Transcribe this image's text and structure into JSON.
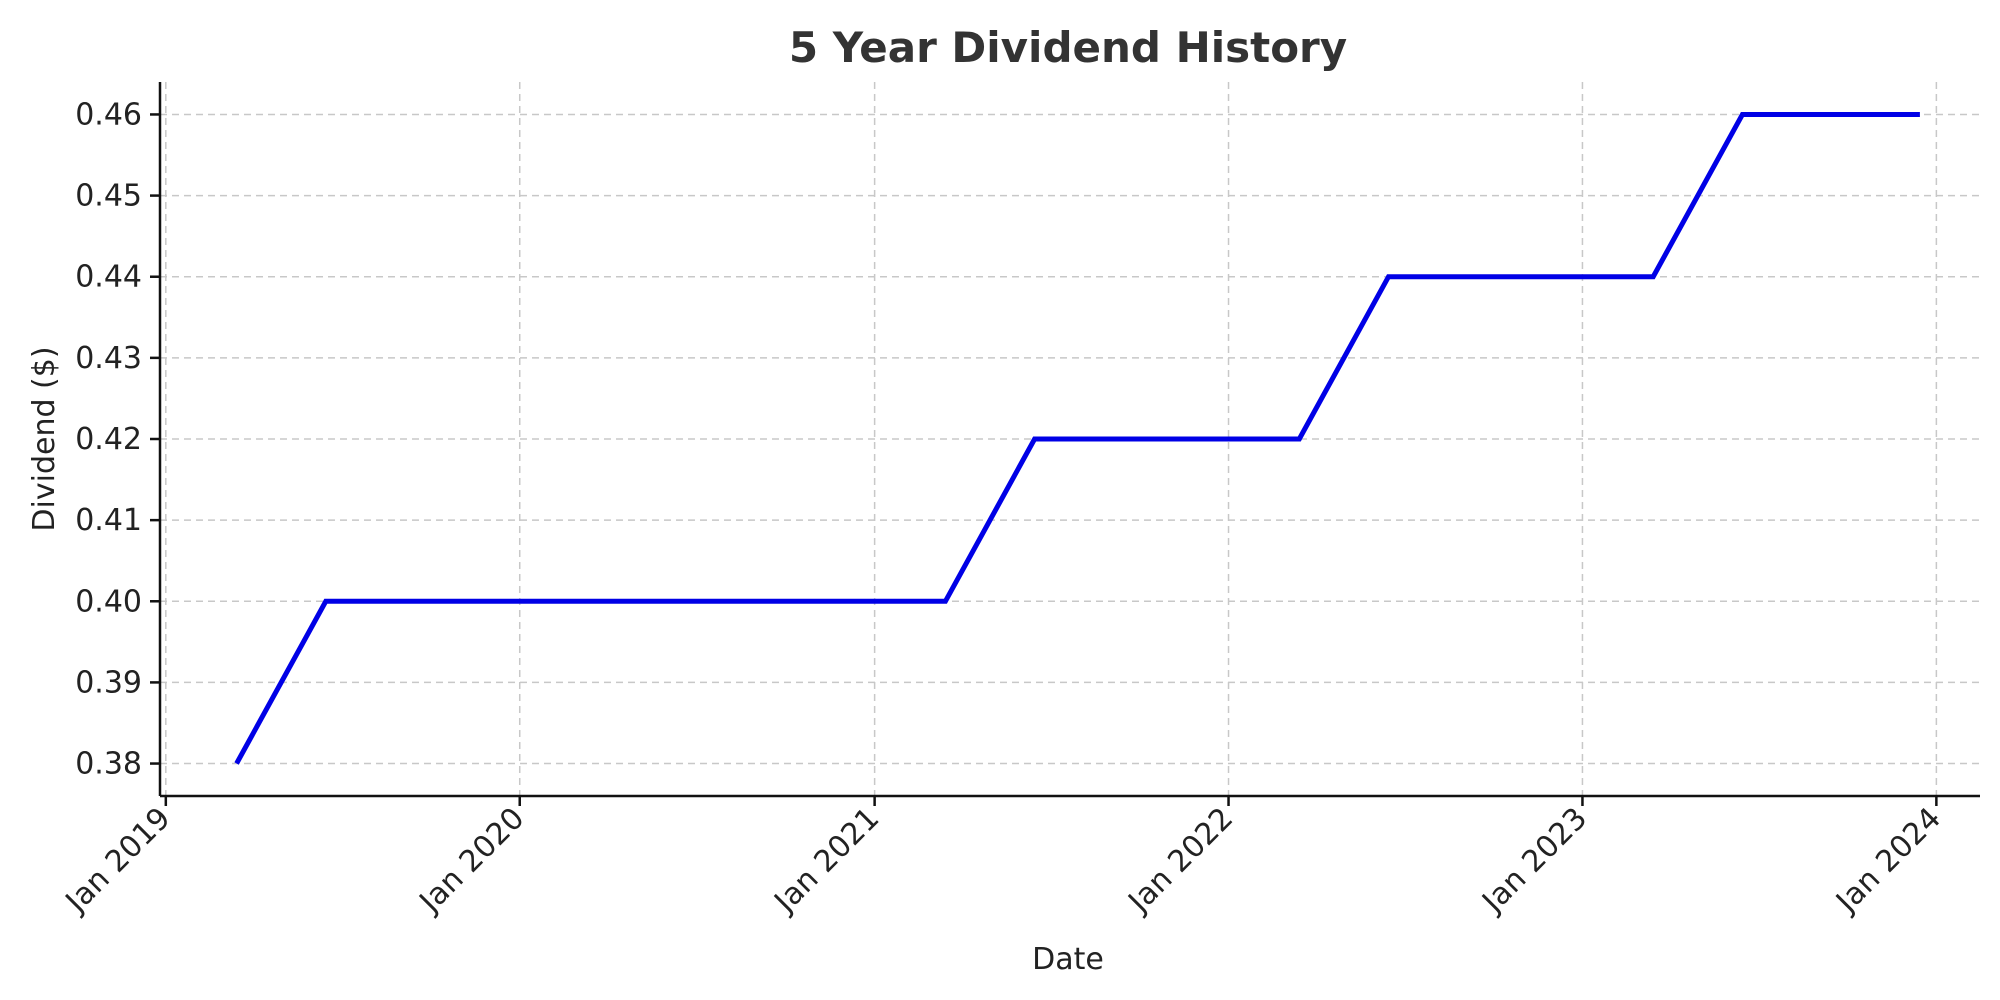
{
  "chart_data": {
    "type": "line",
    "title": "5 Year Dividend History",
    "xlabel": "Date",
    "ylabel": "Dividend ($)",
    "x_ticks": [
      "2019-01-01",
      "2020-01-01",
      "2021-01-01",
      "2022-01-01",
      "2023-01-01",
      "2024-01-01"
    ],
    "x_tick_labels": [
      "Jan 2019",
      "Jan 2020",
      "Jan 2021",
      "Jan 2022",
      "Jan 2023",
      "Jan 2024"
    ],
    "xlim": [
      "2018-12-26",
      "2024-02-15"
    ],
    "ylim": [
      0.376,
      0.464
    ],
    "y_ticks": [
      0.38,
      0.39,
      0.4,
      0.41,
      0.42,
      0.43,
      0.44,
      0.45,
      0.46
    ],
    "y_tick_labels": [
      "0.38",
      "0.39",
      "0.40",
      "0.41",
      "0.42",
      "0.43",
      "0.44",
      "0.45",
      "0.46"
    ],
    "grid": true,
    "series": [
      {
        "color": "#0000e6",
        "points": [
          {
            "x": "2019-03-15",
            "y": 0.38
          },
          {
            "x": "2019-06-15",
            "y": 0.4
          },
          {
            "x": "2021-03-15",
            "y": 0.4
          },
          {
            "x": "2021-06-15",
            "y": 0.42
          },
          {
            "x": "2022-03-15",
            "y": 0.42
          },
          {
            "x": "2022-06-15",
            "y": 0.44
          },
          {
            "x": "2023-03-15",
            "y": 0.44
          },
          {
            "x": "2023-06-15",
            "y": 0.46
          },
          {
            "x": "2023-12-15",
            "y": 0.46
          }
        ]
      }
    ]
  }
}
